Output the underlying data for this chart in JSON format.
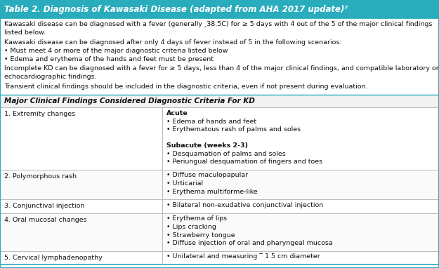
{
  "title": "Table 2. Diagnosis of Kawasaki Disease (adapted from AHA 2017 update)⁷",
  "title_bg": "#29ACBC",
  "title_color": "#FFFFFF",
  "title_fontsize": 8.5,
  "body_bg": "#FFFFFF",
  "border_color": "#29ACBC",
  "intro_paragraphs": [
    "Kawasaki disease can be diagnosed with a fever (generally ‸38.5C) for ≥ 5 days with 4 out of the 5 of the major clinical findings\nlisted below.",
    "Kawasaki disease can be diagnosed after only 4 days of fever instead of 5 in the following scenarios:\n• Must meet 4 or more of the major diagnostic criteria listed below\n• Edema and erythema of the hands and feet must be present",
    "Incomplete KD can be diagnosed with a fever for ≥ 5 days, less than 4 of the major clinical findings, and compatible laboratory or\nechocardiographic findings.",
    "Transient clinical findings should be included in the diagnostic criteria, even if not present during evaluation."
  ],
  "intro_line_counts": [
    2,
    3,
    2,
    1
  ],
  "section_header": "Major Clinical Findings Considered Diagnostic Criteria For KD",
  "rows": [
    {
      "left": "1. Extremity changes",
      "right_lines": [
        {
          "text": "Acute",
          "bold": true
        },
        {
          "text": "• Edema of hands and feet",
          "bold": false
        },
        {
          "text": "• Erythematous rash of palms and soles",
          "bold": false
        },
        {
          "text": "",
          "bold": false
        },
        {
          "text": "Subacute (weeks 2-3)",
          "bold": true
        },
        {
          "text": "• Desquamation of palms and soles",
          "bold": false
        },
        {
          "text": "• Periungual desquamation of fingers and toes",
          "bold": false
        }
      ]
    },
    {
      "left": "2. Polymorphous rash",
      "right_lines": [
        {
          "text": "• Diffuse maculopapular",
          "bold": false
        },
        {
          "text": "• Urticarial",
          "bold": false
        },
        {
          "text": "• Erythema multiforme-like",
          "bold": false
        }
      ]
    },
    {
      "left": "3. Conjunctival injection",
      "right_lines": [
        {
          "text": "• Bilateral non-exudative conjunctival injection",
          "bold": false
        }
      ]
    },
    {
      "left": "4. Oral mucosal changes",
      "right_lines": [
        {
          "text": "• Erythema of lips",
          "bold": false
        },
        {
          "text": "• Lips cracking",
          "bold": false
        },
        {
          "text": "• Strawberry tongue",
          "bold": false
        },
        {
          "text": "• Diffuse injection of oral and pharyngeal mucosa",
          "bold": false
        }
      ]
    },
    {
      "left": "5. Cervical lymphadenopathy",
      "right_lines": [
        {
          "text": "• Unilateral and measuring ‾ 1.5 cm diameter",
          "bold": false
        }
      ]
    }
  ],
  "col_split": 0.37,
  "body_fontsize": 6.8,
  "section_fontsize": 7.5,
  "line_color": "#BBBBBB",
  "outer_line_color": "#29ACBC",
  "title_line_color": "#29ACBC"
}
